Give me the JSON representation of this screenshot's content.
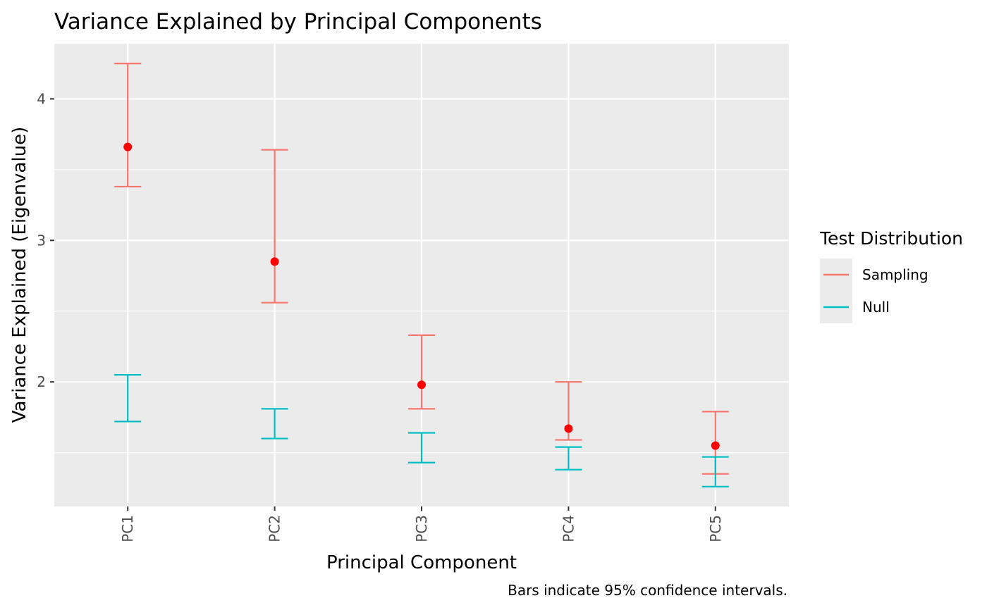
{
  "chart_data": {
    "type": "scatter",
    "title": "Variance Explained by Principal Components",
    "xlabel": "Principal Component",
    "ylabel": "Variance Explained (Eigenvalue)",
    "caption": "Bars indicate 95% confidence intervals.",
    "categories": [
      "PC1",
      "PC2",
      "PC3",
      "PC4",
      "PC5"
    ],
    "ylim": [
      1.12,
      4.39
    ],
    "yticks": [
      2,
      3,
      4
    ],
    "grid": true,
    "legend": {
      "title": "Test Distribution",
      "position": "right",
      "entries": [
        {
          "label": "Sampling",
          "color": "#F8766D"
        },
        {
          "label": "Null",
          "color": "#00BFC4"
        }
      ]
    },
    "series": [
      {
        "name": "Sampling",
        "color": "#F8766D",
        "lower": [
          3.38,
          2.56,
          1.81,
          1.59,
          1.35
        ],
        "upper": [
          4.25,
          3.64,
          2.33,
          2.0,
          1.79
        ]
      },
      {
        "name": "Null",
        "color": "#00BFC4",
        "lower": [
          1.72,
          1.6,
          1.43,
          1.38,
          1.26
        ],
        "upper": [
          2.05,
          1.81,
          1.64,
          1.54,
          1.47
        ]
      }
    ],
    "points": {
      "color": "#FF0000",
      "values": [
        3.66,
        2.85,
        1.98,
        1.67,
        1.55
      ]
    }
  }
}
